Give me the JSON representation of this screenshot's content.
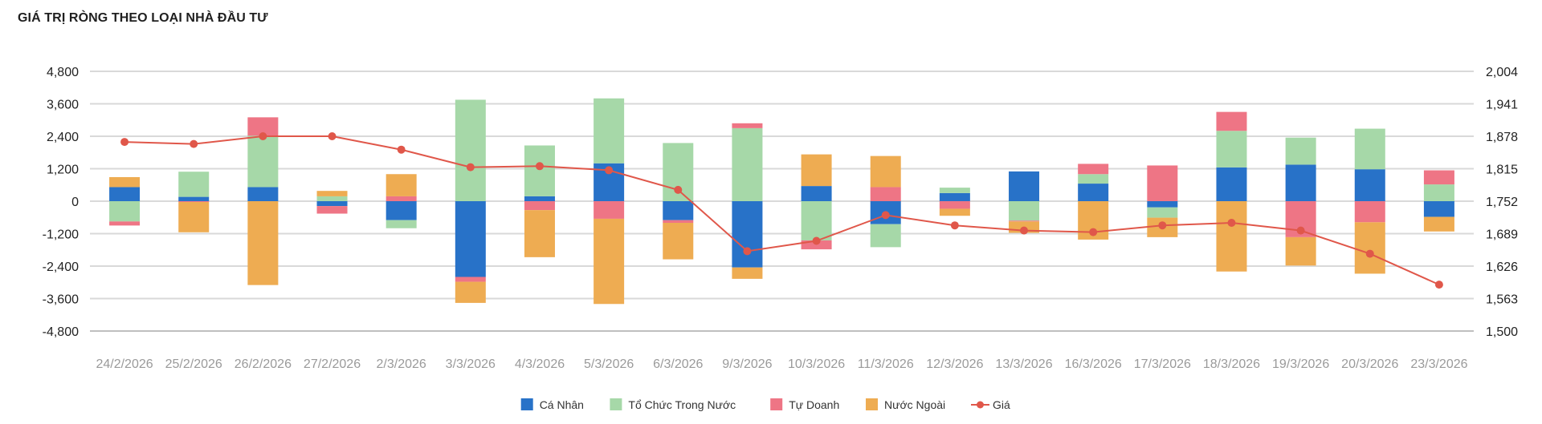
{
  "title": "GIÁ TRỊ RÒNG THEO LOẠI NHÀ ĐẦU TƯ",
  "colors": {
    "ca_nhan": "#2872c8",
    "to_chuc": "#a6d8a8",
    "tu_doanh": "#ee7585",
    "nuoc_ngoai": "#eeac52",
    "gia": "#e0574a",
    "grid": "#d9d9d9",
    "axis": "#bfbfbf"
  },
  "chart_data": {
    "type": "bar",
    "stacked": true,
    "categories": [
      "24/2/2026",
      "25/2/2026",
      "26/2/2026",
      "27/2/2026",
      "2/3/2026",
      "3/3/2026",
      "4/3/2026",
      "5/3/2026",
      "6/3/2026",
      "9/3/2026",
      "10/3/2026",
      "11/3/2026",
      "12/3/2026",
      "13/3/2026",
      "16/3/2026",
      "17/3/2026",
      "18/3/2026",
      "19/3/2026",
      "20/3/2026",
      "23/3/2026"
    ],
    "series": [
      {
        "name": "Cá Nhân",
        "color_key": "ca_nhan",
        "values": [
          520,
          160,
          520,
          -180,
          -700,
          -2800,
          180,
          1400,
          -700,
          -2450,
          560,
          -850,
          300,
          1100,
          650,
          -230,
          1250,
          1350,
          1180,
          -580
        ]
      },
      {
        "name": "Tổ Chức Trong Nước",
        "color_key": "to_chuc",
        "values": [
          -750,
          930,
          1900,
          180,
          -300,
          3750,
          1880,
          2400,
          2150,
          2700,
          -1450,
          -850,
          200,
          -720,
          350,
          -380,
          1350,
          1000,
          1500,
          620
        ]
      },
      {
        "name": "Tự Doanh",
        "color_key": "tu_doanh",
        "values": [
          -150,
          -30,
          680,
          -280,
          180,
          -180,
          -330,
          -650,
          -100,
          180,
          -330,
          520,
          -280,
          -30,
          380,
          1320,
          700,
          -1330,
          -780,
          520
        ]
      },
      {
        "name": "Nước Ngoài",
        "color_key": "nuoc_ngoai",
        "values": [
          370,
          -1120,
          -3100,
          200,
          820,
          -780,
          -1740,
          -3150,
          -1350,
          -420,
          1170,
          1150,
          -260,
          -420,
          -1420,
          -720,
          -2600,
          -1050,
          -1900,
          -540
        ]
      }
    ],
    "line": {
      "name": "Giá",
      "axis": "right",
      "values": [
        1867,
        1863,
        1878,
        1878,
        1852,
        1818,
        1820,
        1812,
        1774,
        1655,
        1675,
        1725,
        1705,
        1695,
        1692,
        1705,
        1710,
        1695,
        1650,
        1590
      ]
    },
    "left_axis": {
      "ticks": [
        "4,800",
        "3,600",
        "2,400",
        "1,200",
        "0",
        "-1,200",
        "-2,400",
        "-3,600",
        "-4,800"
      ],
      "min": -4800,
      "max": 4800
    },
    "right_axis": {
      "ticks": [
        "2,004",
        "1,941",
        "1,878",
        "1,815",
        "1,752",
        "1,689",
        "1,626",
        "1,563",
        "1,500"
      ],
      "min": 1500,
      "max": 2004
    },
    "grid": true,
    "legend_position": "bottom"
  }
}
